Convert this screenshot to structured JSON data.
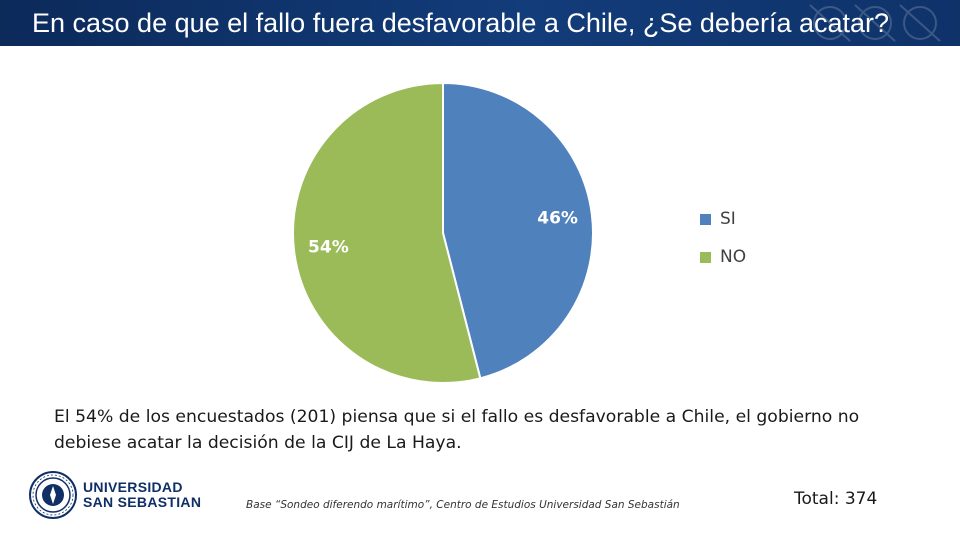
{
  "header": {
    "title": "En caso de que el fallo fuera desfavorable a Chile, ¿Se debería acatar?"
  },
  "chart_data": {
    "type": "pie",
    "categories": [
      "SI",
      "NO"
    ],
    "values": [
      46,
      54
    ],
    "data_labels": [
      "46%",
      "54%"
    ],
    "colors": [
      "#4f81bd",
      "#9bbb59"
    ],
    "start_angle": "12 o'clock",
    "direction": "clockwise",
    "legend": {
      "placement": "right",
      "entries": [
        "SI",
        "NO"
      ]
    }
  },
  "summary": {
    "text": "El 54% de los encuestados (201) piensa que si el fallo es desfavorable a Chile, el gobierno no debiese acatar la decisión de la CIJ de La Haya."
  },
  "footer": {
    "source": "Base “Sondeo diferendo marítimo”, Centro de Estudios Universidad San Sebastián",
    "total": "Total: 374",
    "logo": {
      "line1": "UNIVERSIDAD",
      "line2": "SAN SEBASTIAN",
      "brand_color": "#0f2f66"
    }
  }
}
